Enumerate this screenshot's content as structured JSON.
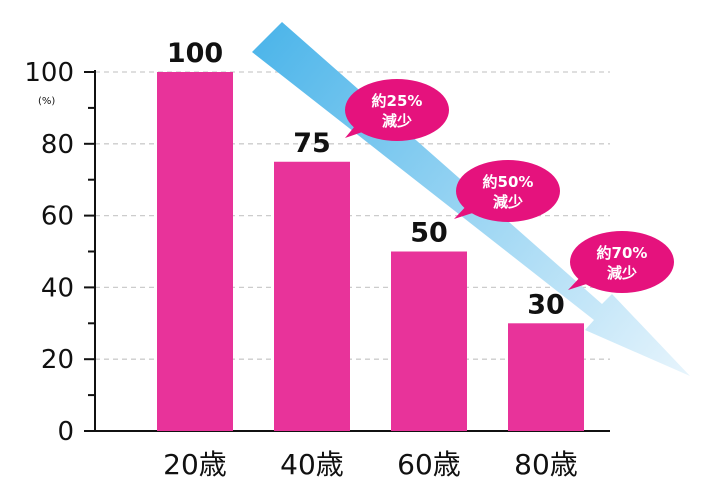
{
  "chart_data": {
    "type": "bar",
    "categories": [
      "20歳",
      "40歳",
      "60歳",
      "80歳"
    ],
    "values": [
      100,
      75,
      50,
      30
    ],
    "value_labels": [
      "100",
      "75",
      "50",
      "30"
    ],
    "ylim": [
      0,
      100
    ],
    "yticks": [
      "0",
      "20",
      "40",
      "60",
      "80",
      "100"
    ],
    "ytick_values": [
      0,
      20,
      40,
      60,
      80,
      100
    ],
    "y_unit": "(%)",
    "grid": true,
    "callouts": [
      {
        "line1": "約25%",
        "line2": "減少"
      },
      {
        "line1": "約50%",
        "line2": "減少"
      },
      {
        "line1": "約70%",
        "line2": "減少"
      }
    ],
    "colors": {
      "bar": "#e8339a",
      "callout": "#e5127d",
      "arrow_start": "#4fb6ea",
      "arrow_end": "#e6f4fc",
      "grid": "#cccccc",
      "axis": "#111111"
    }
  }
}
